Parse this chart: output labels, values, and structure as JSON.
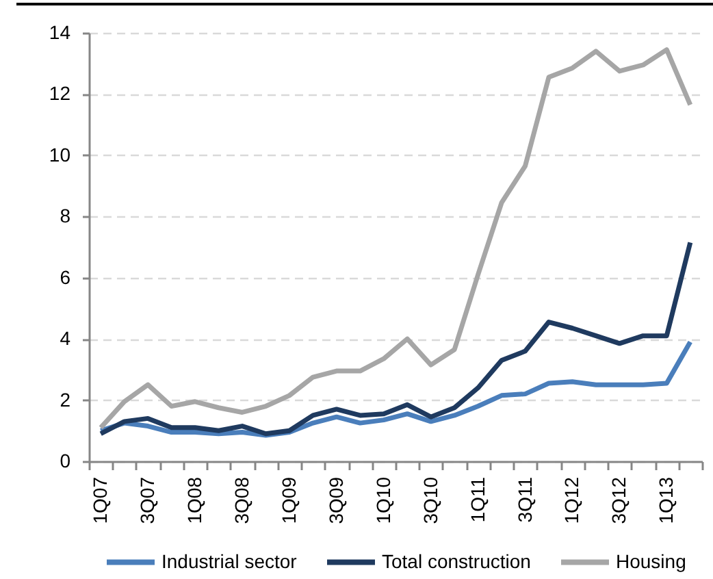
{
  "chart_data": {
    "type": "line",
    "categories": [
      "1Q07",
      null,
      "3Q07",
      null,
      "1Q08",
      null,
      "3Q08",
      null,
      "1Q09",
      null,
      "3Q09",
      null,
      "1Q10",
      null,
      "3Q10",
      null,
      "1Q11",
      null,
      "3Q11",
      null,
      "1Q12",
      null,
      "3Q12",
      null,
      "1Q13",
      null
    ],
    "series": [
      {
        "name": "Industrial sector",
        "color": "#4a7ebb",
        "values": [
          1.0,
          1.25,
          1.15,
          0.95,
          0.95,
          0.9,
          0.95,
          0.85,
          0.95,
          1.25,
          1.45,
          1.25,
          1.35,
          1.55,
          1.3,
          1.5,
          1.8,
          2.15,
          2.2,
          2.55,
          2.6,
          2.5,
          2.5,
          2.5,
          2.55,
          3.9
        ]
      },
      {
        "name": "Total construction",
        "color": "#1f3a5f",
        "values": [
          0.9,
          1.3,
          1.4,
          1.1,
          1.1,
          1.0,
          1.15,
          0.9,
          1.0,
          1.5,
          1.7,
          1.5,
          1.55,
          1.85,
          1.45,
          1.75,
          2.4,
          3.3,
          3.6,
          4.55,
          4.35,
          4.1,
          3.85,
          4.1,
          4.1,
          7.15
        ]
      },
      {
        "name": "Housing",
        "color": "#a6a6a6",
        "values": [
          1.1,
          1.95,
          2.5,
          1.8,
          1.95,
          1.75,
          1.6,
          1.8,
          2.15,
          2.75,
          2.95,
          2.95,
          3.35,
          4.0,
          3.15,
          3.65,
          6.1,
          8.45,
          9.65,
          12.55,
          12.85,
          13.4,
          12.75,
          12.95,
          13.45,
          11.65
        ]
      }
    ],
    "ylim": [
      0,
      14
    ],
    "yticks": [
      0,
      2,
      4,
      6,
      8,
      10,
      12,
      14
    ],
    "grid": "y",
    "legend": "bottom",
    "line_style": "solid"
  }
}
